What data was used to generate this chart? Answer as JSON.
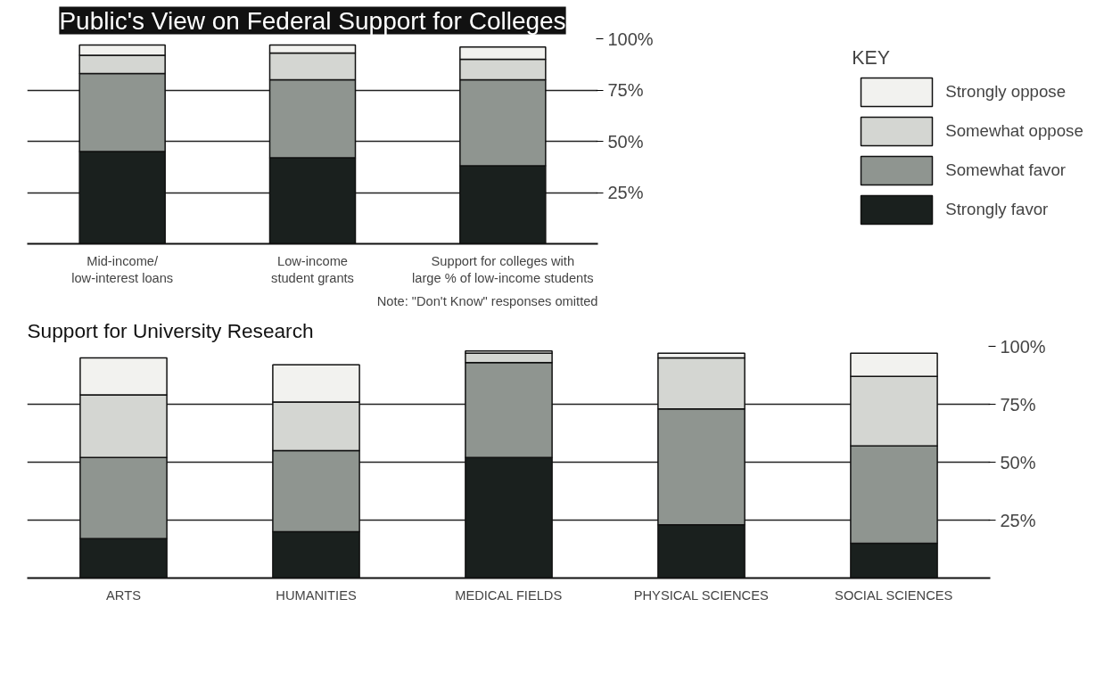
{
  "chart_data": [
    {
      "type": "bar",
      "title": "Public's View on Federal Support for Colleges",
      "categories": [
        "Mid-income/\nlow-interest loans",
        "Low-income\nstudent grants",
        "Support for colleges with\nlarge % of low-income students"
      ],
      "stacked": true,
      "legend": "right",
      "legend_title": "KEY",
      "grid": "y",
      "ylim": [
        0,
        100
      ],
      "yticks": [
        {
          "value": 25,
          "label": "25%"
        },
        {
          "value": 50,
          "label": "50%"
        },
        {
          "value": 75,
          "label": "75%"
        },
        {
          "value": 100,
          "label": "100%"
        }
      ],
      "annotations": [
        "Note: \"Don't Know\" responses omitted"
      ],
      "series": [
        {
          "name": "Strongly favor",
          "color": "#1a201e",
          "values": [
            45,
            42,
            38
          ]
        },
        {
          "name": "Somewhat favor",
          "color": "#8f9590",
          "values": [
            38,
            38,
            42
          ]
        },
        {
          "name": "Somewhat oppose",
          "color": "#d4d6d2",
          "values": [
            9,
            13,
            10
          ]
        },
        {
          "name": "Strongly oppose",
          "color": "#f2f2ef",
          "values": [
            5,
            4,
            6
          ]
        }
      ]
    },
    {
      "type": "bar",
      "title": "Support for University Research",
      "categories": [
        "ARTS",
        "HUMANITIES",
        "MEDICAL FIELDS",
        "PHYSICAL SCIENCES",
        "SOCIAL SCIENCES"
      ],
      "stacked": true,
      "grid": "y",
      "ylim": [
        0,
        100
      ],
      "yticks": [
        {
          "value": 25,
          "label": "25%"
        },
        {
          "value": 50,
          "label": "50%"
        },
        {
          "value": 75,
          "label": "75%"
        },
        {
          "value": 100,
          "label": "100%"
        }
      ],
      "series": [
        {
          "color": "#1a201e",
          "values": [
            17,
            20,
            52,
            23,
            15
          ]
        },
        {
          "color": "#8f9590",
          "values": [
            35,
            35,
            41,
            50,
            42
          ]
        },
        {
          "color": "#d4d6d2",
          "values": [
            27,
            21,
            4,
            22,
            30
          ]
        },
        {
          "color": "#f2f2ef",
          "values": [
            16,
            16,
            1,
            2,
            10
          ]
        }
      ]
    }
  ]
}
